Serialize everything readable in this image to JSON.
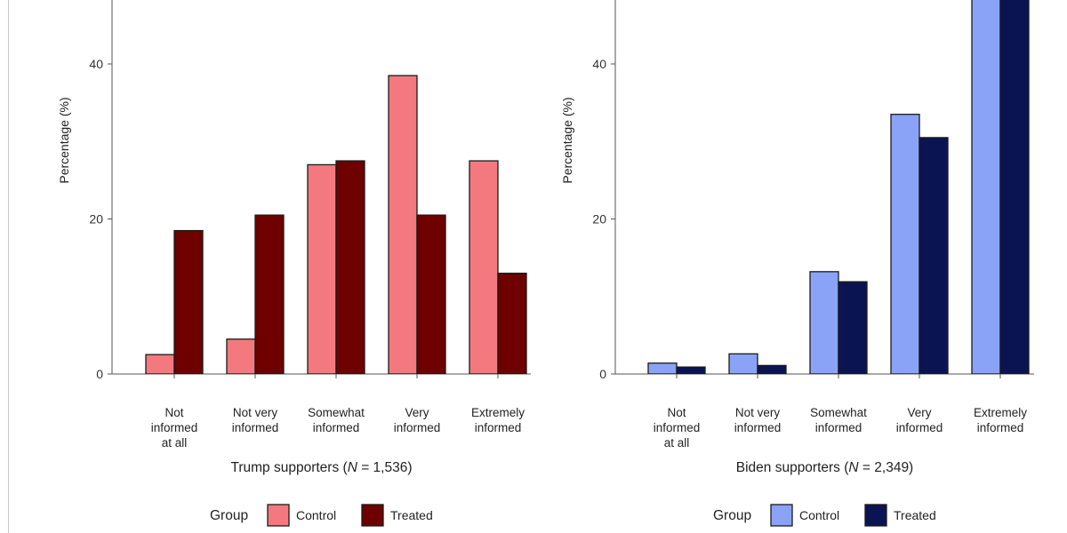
{
  "chart_data": [
    {
      "type": "bar",
      "title": "",
      "xlabel_prefix": "Trump supporters (",
      "xlabel_italic": "N",
      "xlabel_suffix": " = 1,536)",
      "ylabel": "Percentage (%)",
      "ylim": [
        0,
        53
      ],
      "yticks": [
        "0",
        "20",
        "40"
      ],
      "categories": [
        [
          "Not",
          "informed",
          "at all"
        ],
        [
          "Not very",
          "informed"
        ],
        [
          "Somewhat",
          "informed"
        ],
        [
          "Very",
          "informed"
        ],
        [
          "Extremely",
          "informed"
        ]
      ],
      "series": [
        {
          "name": "Control",
          "color": "#f4797f",
          "values": [
            2.5,
            4.5,
            27,
            38.5,
            27.5
          ]
        },
        {
          "name": "Treated",
          "color": "#6e0000",
          "values": [
            18.5,
            20.5,
            27.5,
            20.5,
            13
          ]
        }
      ],
      "legend_title": "Group",
      "legend_position": "bottom"
    },
    {
      "type": "bar",
      "title": "",
      "xlabel_prefix": "Biden supporters (",
      "xlabel_italic": "N",
      "xlabel_suffix": " = 2,349)",
      "ylabel": "Percentage (%)",
      "ylim": [
        0,
        53
      ],
      "yticks": [
        "0",
        "20",
        "40"
      ],
      "categories": [
        [
          "Not",
          "informed",
          "at all"
        ],
        [
          "Not very",
          "informed"
        ],
        [
          "Somewhat",
          "informed"
        ],
        [
          "Very",
          "informed"
        ],
        [
          "Extremely",
          "informed"
        ]
      ],
      "series": [
        {
          "name": "Control",
          "color": "#8aa3f7",
          "values": [
            1.4,
            2.6,
            13.2,
            33.5,
            50
          ]
        },
        {
          "name": "Treated",
          "color": "#0b1452",
          "values": [
            0.9,
            1.1,
            11.9,
            30.5,
            50
          ]
        }
      ],
      "legend_title": "Group",
      "legend_position": "bottom"
    }
  ]
}
